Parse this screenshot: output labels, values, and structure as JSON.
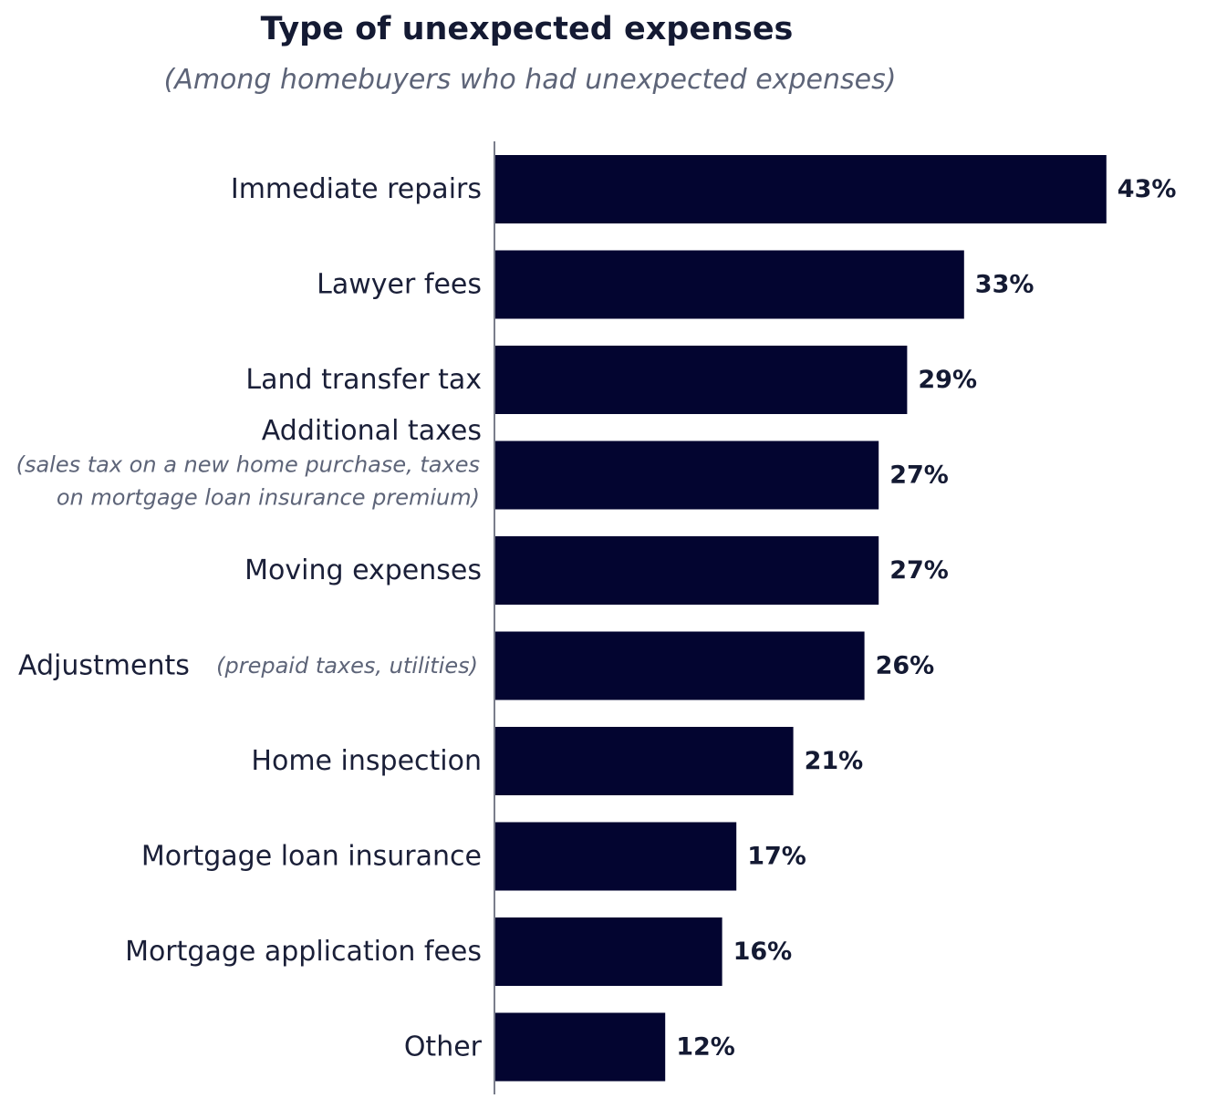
{
  "chart_data": {
    "type": "bar",
    "orientation": "horizontal",
    "title": "Type of unexpected expenses",
    "subtitle": "(Among homebuyers who had unexpected expenses)",
    "categories": [
      {
        "label": "Immediate repairs",
        "note": "",
        "note_lines": []
      },
      {
        "label": "Lawyer fees",
        "note": "",
        "note_lines": []
      },
      {
        "label": "Land transfer tax",
        "note": "",
        "note_lines": []
      },
      {
        "label": "Additional taxes",
        "note": "",
        "note_lines": [
          "(sales tax on a new home purchase, taxes",
          "on mortgage loan insurance premium)"
        ]
      },
      {
        "label": "Moving expenses",
        "note": "",
        "note_lines": []
      },
      {
        "label": "Adjustments",
        "note": "(prepaid taxes, utilities)",
        "note_lines": []
      },
      {
        "label": "Home inspection",
        "note": "",
        "note_lines": []
      },
      {
        "label": "Mortgage loan insurance",
        "note": "",
        "note_lines": []
      },
      {
        "label": "Mortgage application fees",
        "note": "",
        "note_lines": []
      },
      {
        "label": "Other",
        "note": "",
        "note_lines": []
      }
    ],
    "values": [
      43,
      33,
      29,
      27,
      27,
      26,
      21,
      17,
      16,
      12
    ],
    "value_labels": [
      "43%",
      "33%",
      "29%",
      "27%",
      "27%",
      "26%",
      "21%",
      "17%",
      "16%",
      "12%"
    ],
    "unit": "%",
    "bar_color": "#030530",
    "axis_color": "#7a7e8c",
    "legend": "none",
    "grid": false
  }
}
